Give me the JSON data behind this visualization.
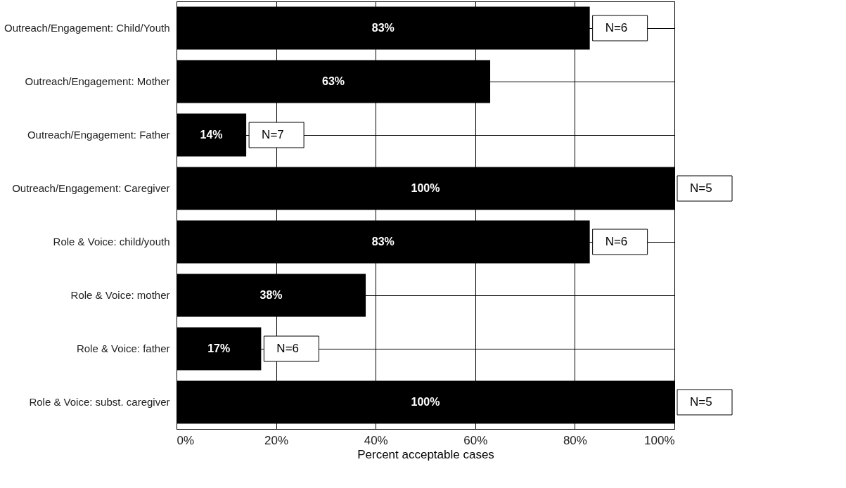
{
  "chart_data": {
    "type": "bar",
    "orientation": "horizontal",
    "categories": [
      "Outreach/Engagement: Child/Youth",
      "Outreach/Engagement: Mother",
      "Outreach/Engagement: Father",
      "Outreach/Engagement: Caregiver",
      "Role & Voice: child/youth",
      "Role & Voice: mother",
      "Role & Voice: father",
      "Role & Voice: subst. caregiver"
    ],
    "values": [
      83,
      63,
      14,
      100,
      83,
      38,
      17,
      100
    ],
    "value_labels": [
      "83%",
      "63%",
      "14%",
      "100%",
      "83%",
      "38%",
      "17%",
      "100%"
    ],
    "color": "#000000",
    "xlabel": "Percent acceptable cases",
    "xlim": [
      0,
      100
    ],
    "xticks": [
      {
        "value": 0,
        "label": "0%"
      },
      {
        "value": 20,
        "label": "20%"
      },
      {
        "value": 40,
        "label": "40%"
      },
      {
        "value": 60,
        "label": "60%"
      },
      {
        "value": 80,
        "label": "80%"
      },
      {
        "value": 100,
        "label": "100%"
      }
    ],
    "annotations": [
      {
        "text": "N=6",
        "x": 83,
        "y": "Outreach/Engagement: Child/Youth"
      },
      {
        "text": "N=7",
        "x": 14,
        "y": "Outreach/Engagement: Father"
      },
      {
        "text": "N=5",
        "x": 100,
        "y": "Outreach/Engagement: Caregiver"
      },
      {
        "text": "N=6",
        "x": 83,
        "y": "Role & Voice: child/youth"
      },
      {
        "text": "N=6",
        "x": 17,
        "y": "Role & Voice: father"
      },
      {
        "text": "N=5",
        "x": 100,
        "y": "Role & Voice: subst. caregiver"
      }
    ],
    "grid": true
  }
}
